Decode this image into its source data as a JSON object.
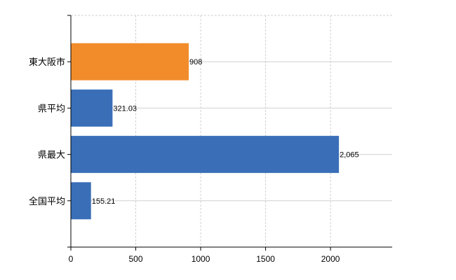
{
  "chart_data": {
    "type": "bar",
    "orientation": "horizontal",
    "title": "",
    "xlabel": "",
    "ylabel": "",
    "categories": [
      "東大阪市",
      "県平均",
      "県最大",
      "全国平均"
    ],
    "values": [
      908,
      321.03,
      2065,
      155.21
    ],
    "data_labels": [
      "908",
      "321.03",
      "2,065",
      "155.21"
    ],
    "colors": [
      "#f28c2b",
      "#3a6fb8",
      "#3a6fb8",
      "#3a6fb8"
    ],
    "xticks": [
      0,
      500,
      1000,
      1500,
      2000
    ],
    "xtick_labels": [
      "0",
      "500",
      "1000",
      "1500",
      "2000"
    ],
    "xlim": [
      0,
      2475
    ],
    "grid": true,
    "legend": "none"
  }
}
